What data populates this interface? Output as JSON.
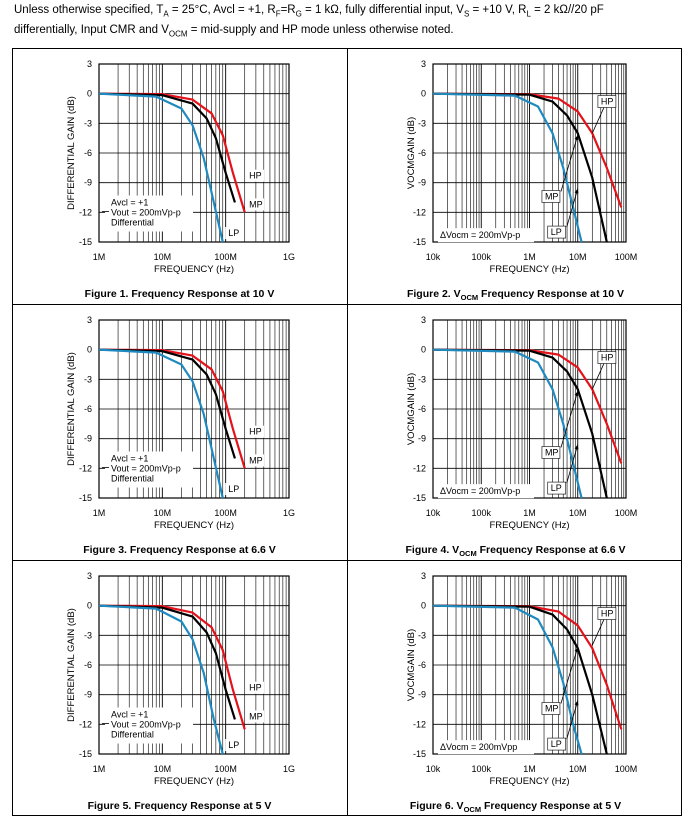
{
  "header": {
    "line1_prefix": "Unless otherwise specified, T",
    "line1_sub_A": "A",
    "line1_mid1": " = 25°C, Avcl = +1, R",
    "line1_sub_F": "F",
    "line1_mid2": "=R",
    "line1_sub_G": "G",
    "line1_mid3": " = 1 kΩ, fully differential input, V",
    "line1_sub_S": "S",
    "line1_mid4": " = +10 V, R",
    "line1_sub_L": "L",
    "line1_suffix": " = 2 kΩ//20 pF",
    "line2_prefix": "differentially, Input CMR and V",
    "line2_sub_OCM": "OCM",
    "line2_suffix": " = mid-supply and HP mode unless otherwise noted."
  },
  "colors": {
    "hp": "#e3121b",
    "mp": "#000000",
    "lp": "#1f8ac0",
    "grid": "#000000"
  },
  "chart_data": [
    {
      "type": "line",
      "caption_pre": "Figure 1. Frequency Response at 10 V",
      "caption_sub": "",
      "caption_post": "",
      "xlabel": "FREQUENCY (Hz)",
      "ylabel": "DIFFERENTIAL GAIN (dB)",
      "x_scale": "log",
      "xlim": [
        1000000,
        1000000000
      ],
      "ylim": [
        -15,
        3
      ],
      "xticks": [
        1000000,
        10000000,
        100000000,
        1000000000
      ],
      "xtick_labels": [
        "1M",
        "10M",
        "100M",
        "1G"
      ],
      "yticks": [
        3,
        0,
        -3,
        -6,
        -9,
        -12,
        -15
      ],
      "ytick_labels": [
        "3",
        "0",
        "-3",
        "-6",
        "-9",
        "-12",
        "-15"
      ],
      "legend_lines": [
        "Avcl = +1",
        "Vout = 200mVp-p",
        "Differential"
      ],
      "series": [
        {
          "name": "HP",
          "x": [
            1000000,
            10000000,
            30000000,
            60000000,
            90000000,
            130000000,
            200000000
          ],
          "y": [
            0,
            -0.05,
            -0.6,
            -2,
            -4.2,
            -8,
            -12
          ]
        },
        {
          "name": "MP",
          "x": [
            1000000,
            10000000,
            30000000,
            50000000,
            70000000,
            100000000,
            140000000
          ],
          "y": [
            0,
            -0.15,
            -1,
            -2.5,
            -4.5,
            -8,
            -11
          ]
        },
        {
          "name": "LP",
          "x": [
            1000000,
            8000000,
            20000000,
            30000000,
            45000000,
            65000000,
            90000000
          ],
          "y": [
            0,
            -0.3,
            -1.5,
            -3.2,
            -6.5,
            -11,
            -15
          ]
        }
      ],
      "annotations": [
        "HP",
        "MP",
        "LP"
      ]
    },
    {
      "type": "line",
      "caption_pre": "Figure 2. V",
      "caption_sub": "OCM",
      "caption_post": " Frequency Response at 10 V",
      "xlabel": "FREQUENCY (Hz)",
      "ylabel": "VOCMGAIN (dB)",
      "x_scale": "log",
      "xlim": [
        10000,
        100000000
      ],
      "ylim": [
        -15,
        3
      ],
      "xticks": [
        10000,
        100000,
        1000000,
        10000000,
        100000000
      ],
      "xtick_labels": [
        "10k",
        "100k",
        "1M",
        "10M",
        "100M"
      ],
      "yticks": [
        3,
        0,
        -3,
        -6,
        -9,
        -12,
        -15
      ],
      "ytick_labels": [
        "3",
        "0",
        "-3",
        "-6",
        "-9",
        "-12",
        "-15"
      ],
      "legend_lines": [
        "ΔVocm = 200mVp-p"
      ],
      "series": [
        {
          "name": "HP",
          "x": [
            10000,
            1000000,
            4000000,
            10000000,
            20000000,
            40000000,
            80000000
          ],
          "y": [
            0,
            -0.05,
            -0.5,
            -1.8,
            -4,
            -7.5,
            -11.5
          ]
        },
        {
          "name": "MP",
          "x": [
            10000,
            1000000,
            3000000,
            6000000,
            10000000,
            20000000,
            40000000
          ],
          "y": [
            0,
            -0.1,
            -0.8,
            -2.2,
            -4,
            -8.5,
            -15
          ]
        },
        {
          "name": "LP",
          "x": [
            10000,
            500000,
            1500000,
            3000000,
            5000000,
            8000000,
            12000000
          ],
          "y": [
            0,
            -0.2,
            -1.3,
            -4,
            -7.5,
            -11.5,
            -15
          ]
        }
      ],
      "annotations": [
        "HP",
        "MP",
        "LP"
      ]
    },
    {
      "type": "line",
      "caption_pre": "Figure 3. Frequency Response at 6.6 V",
      "caption_sub": "",
      "caption_post": "",
      "xlabel": "FREQUENCY (Hz)",
      "ylabel": "DIFFERENTIAL GAIN (dB)",
      "x_scale": "log",
      "xlim": [
        1000000,
        1000000000
      ],
      "ylim": [
        -15,
        3
      ],
      "xticks": [
        1000000,
        10000000,
        100000000,
        1000000000
      ],
      "xtick_labels": [
        "1M",
        "10M",
        "100M",
        "1G"
      ],
      "yticks": [
        3,
        0,
        -3,
        -6,
        -9,
        -12,
        -15
      ],
      "ytick_labels": [
        "3",
        "0",
        "-3",
        "-6",
        "-9",
        "-12",
        "-15"
      ],
      "legend_lines": [
        "Avcl = +1",
        "Vout = 200mVp-p",
        "Differential"
      ],
      "series": [
        {
          "name": "HP",
          "x": [
            1000000,
            10000000,
            30000000,
            60000000,
            90000000,
            130000000,
            200000000
          ],
          "y": [
            0,
            -0.05,
            -0.6,
            -2,
            -4.2,
            -8,
            -12
          ]
        },
        {
          "name": "MP",
          "x": [
            1000000,
            10000000,
            30000000,
            50000000,
            70000000,
            100000000,
            140000000
          ],
          "y": [
            0,
            -0.15,
            -1,
            -2.5,
            -4.5,
            -8,
            -11
          ]
        },
        {
          "name": "LP",
          "x": [
            1000000,
            8000000,
            20000000,
            30000000,
            45000000,
            65000000,
            90000000
          ],
          "y": [
            0,
            -0.3,
            -1.5,
            -3.2,
            -6.5,
            -11,
            -15
          ]
        }
      ],
      "annotations": [
        "HP",
        "MP",
        "LP"
      ]
    },
    {
      "type": "line",
      "caption_pre": "Figure 4. V",
      "caption_sub": "OCM",
      "caption_post": " Frequency Response at 6.6 V",
      "xlabel": "FREQUENCY (Hz)",
      "ylabel": "VOCMGAIN (dB)",
      "x_scale": "log",
      "xlim": [
        10000,
        100000000
      ],
      "ylim": [
        -15,
        3
      ],
      "xticks": [
        10000,
        100000,
        1000000,
        10000000,
        100000000
      ],
      "xtick_labels": [
        "10k",
        "100k",
        "1M",
        "10M",
        "100M"
      ],
      "yticks": [
        3,
        0,
        -3,
        -6,
        -9,
        -12,
        -15
      ],
      "ytick_labels": [
        "3",
        "0",
        "-3",
        "-6",
        "-9",
        "-12",
        "-15"
      ],
      "legend_lines": [
        "ΔVocm = 200mVp-p"
      ],
      "series": [
        {
          "name": "HP",
          "x": [
            10000,
            1000000,
            4000000,
            10000000,
            20000000,
            40000000,
            80000000
          ],
          "y": [
            0,
            -0.05,
            -0.5,
            -1.8,
            -4,
            -7.5,
            -11.5
          ]
        },
        {
          "name": "MP",
          "x": [
            10000,
            1000000,
            3000000,
            6000000,
            10000000,
            20000000,
            40000000
          ],
          "y": [
            0,
            -0.1,
            -0.8,
            -2.2,
            -4,
            -8.5,
            -15
          ]
        },
        {
          "name": "LP",
          "x": [
            10000,
            500000,
            1500000,
            3000000,
            5000000,
            8000000,
            12000000
          ],
          "y": [
            0,
            -0.2,
            -1.3,
            -4,
            -7.5,
            -11.5,
            -15
          ]
        }
      ],
      "annotations": [
        "HP",
        "MP",
        "LP"
      ]
    },
    {
      "type": "line",
      "caption_pre": "Figure 5. Frequency Response at 5 V",
      "caption_sub": "",
      "caption_post": "",
      "xlabel": "FREQUENCY (Hz)",
      "ylabel": "DIFFERENTIAL GAIN (dB)",
      "x_scale": "log",
      "xlim": [
        1000000,
        1000000000
      ],
      "ylim": [
        -15,
        3
      ],
      "xticks": [
        1000000,
        10000000,
        100000000,
        1000000000
      ],
      "xtick_labels": [
        "1M",
        "10M",
        "100M",
        "1G"
      ],
      "yticks": [
        3,
        0,
        -3,
        -6,
        -9,
        -12,
        -15
      ],
      "ytick_labels": [
        "3",
        "0",
        "-3",
        "-6",
        "-9",
        "-12",
        "-15"
      ],
      "legend_lines": [
        "Avcl = +1",
        "Vout = 200mVp-p",
        "Differential"
      ],
      "series": [
        {
          "name": "HP",
          "x": [
            1000000,
            10000000,
            30000000,
            60000000,
            90000000,
            130000000,
            200000000
          ],
          "y": [
            0,
            -0.05,
            -0.7,
            -2.2,
            -4.5,
            -8.5,
            -12.5
          ]
        },
        {
          "name": "MP",
          "x": [
            1000000,
            10000000,
            30000000,
            50000000,
            70000000,
            100000000,
            140000000
          ],
          "y": [
            0,
            -0.2,
            -1.1,
            -2.7,
            -4.8,
            -8.5,
            -11.5
          ]
        },
        {
          "name": "LP",
          "x": [
            1000000,
            8000000,
            20000000,
            30000000,
            45000000,
            65000000,
            90000000
          ],
          "y": [
            0,
            -0.3,
            -1.6,
            -3.4,
            -6.8,
            -11.5,
            -15
          ]
        }
      ],
      "annotations": [
        "HP",
        "MP",
        "LP"
      ]
    },
    {
      "type": "line",
      "caption_pre": "Figure 6. V",
      "caption_sub": "OCM",
      "caption_post": " Frequency Response at 5 V",
      "xlabel": "FREQUENCY (Hz)",
      "ylabel": "VOCMGAIN (dB)",
      "x_scale": "log",
      "xlim": [
        10000,
        100000000
      ],
      "ylim": [
        -15,
        3
      ],
      "xticks": [
        10000,
        100000,
        1000000,
        10000000,
        100000000
      ],
      "xtick_labels": [
        "10k",
        "100k",
        "1M",
        "10M",
        "100M"
      ],
      "yticks": [
        3,
        0,
        -3,
        -6,
        -9,
        -12,
        -15
      ],
      "ytick_labels": [
        "3",
        "0",
        "-3",
        "-6",
        "-9",
        "-12",
        "-15"
      ],
      "legend_lines": [
        "ΔVocm = 200mVpp"
      ],
      "series": [
        {
          "name": "HP",
          "x": [
            10000,
            1000000,
            4000000,
            10000000,
            20000000,
            40000000,
            80000000
          ],
          "y": [
            0,
            -0.05,
            -0.6,
            -2,
            -4.3,
            -8,
            -12.5
          ]
        },
        {
          "name": "MP",
          "x": [
            10000,
            1000000,
            3000000,
            6000000,
            10000000,
            20000000,
            40000000
          ],
          "y": [
            0,
            -0.1,
            -0.9,
            -2.4,
            -4.3,
            -9,
            -15
          ]
        },
        {
          "name": "LP",
          "x": [
            10000,
            500000,
            1500000,
            3000000,
            5000000,
            8000000,
            12000000
          ],
          "y": [
            0,
            -0.2,
            -1.4,
            -4.2,
            -7.8,
            -12,
            -15
          ]
        }
      ],
      "annotations": [
        "HP",
        "MP",
        "LP"
      ]
    }
  ]
}
